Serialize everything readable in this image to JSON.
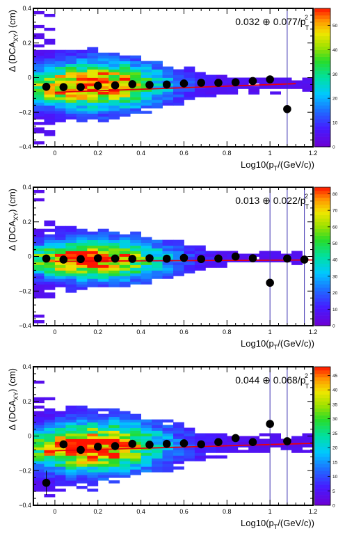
{
  "chart_data": [
    {
      "type": "heatmap",
      "title": "",
      "xlabel": {
        "pre": "Log10(p",
        "sub": "T",
        "post": "/(GeV/c))"
      },
      "ylabel": {
        "pre": "Δ (DCA",
        "sub": "XY",
        "post": ") (cm)"
      },
      "xlim": [
        -0.1,
        1.2
      ],
      "ylim": [
        -0.4,
        0.4
      ],
      "x_ticks": [
        0,
        0.2,
        0.4,
        0.6,
        0.8,
        1,
        1.2
      ],
      "x_tick_labels": [
        "0",
        "0.2",
        "0.4",
        "0.6",
        "0.8",
        "1",
        "1.2"
      ],
      "y_ticks": [
        -0.4,
        -0.2,
        0,
        0.2,
        0.4
      ],
      "y_tick_labels": [
        "−0.4",
        "−0.2",
        "0",
        "0.2",
        "0.4"
      ],
      "z_ticks": [
        0,
        10,
        20,
        30,
        40,
        50
      ],
      "zmax": 57,
      "annotation": {
        "a": "0.032",
        "op": "⊕",
        "b": "0.077/p",
        "sub": "T",
        "sup": "2"
      },
      "points": {
        "x": [
          -0.04,
          0.04,
          0.12,
          0.2,
          0.28,
          0.36,
          0.44,
          0.52,
          0.6,
          0.68,
          0.76,
          0.84,
          0.92,
          1.0,
          1.08
        ],
        "y": [
          -0.053,
          -0.055,
          -0.055,
          -0.047,
          -0.045,
          -0.038,
          -0.042,
          -0.04,
          -0.034,
          -0.03,
          -0.03,
          -0.027,
          -0.02,
          -0.01,
          -0.182
        ],
        "yerr": [
          0.005,
          0.005,
          0.004,
          0.004,
          0.004,
          0.004,
          0.004,
          0.004,
          0.005,
          0.005,
          0.006,
          0.007,
          0.008,
          0.01,
          0.8
        ]
      },
      "fit": {
        "x": [
          0.0,
          1.12
        ],
        "y": [
          -0.085,
          -0.035
        ]
      }
    },
    {
      "type": "heatmap",
      "title": "",
      "xlabel": {
        "pre": "Log10(p",
        "sub": "T",
        "post": "/(GeV/c))"
      },
      "ylabel": {
        "pre": "Δ (DCA",
        "sub": "XY",
        "post": ") (cm)"
      },
      "xlim": [
        -0.1,
        1.2
      ],
      "ylim": [
        -0.4,
        0.4
      ],
      "x_ticks": [
        0,
        0.2,
        0.4,
        0.6,
        0.8,
        1,
        1.2
      ],
      "x_tick_labels": [
        "0",
        "0.2",
        "0.4",
        "0.6",
        "0.8",
        "1",
        "1.2"
      ],
      "y_ticks": [
        -0.4,
        -0.2,
        0,
        0.2,
        0.4
      ],
      "y_tick_labels": [
        "−0.4",
        "−0.2",
        "0",
        "0.2",
        "0.4"
      ],
      "z_ticks": [
        0,
        10,
        20,
        30,
        40,
        50,
        60,
        70,
        80
      ],
      "zmax": 84,
      "annotation": {
        "a": "0.013",
        "op": "⊕",
        "b": "0.022/p",
        "sub": "T",
        "sup": "2"
      },
      "points": {
        "x": [
          -0.04,
          0.04,
          0.12,
          0.2,
          0.28,
          0.36,
          0.44,
          0.52,
          0.6,
          0.68,
          0.76,
          0.84,
          0.92,
          1.0,
          1.08,
          1.16
        ],
        "y": [
          -0.012,
          -0.018,
          -0.015,
          -0.01,
          -0.012,
          -0.014,
          -0.01,
          -0.013,
          -0.008,
          -0.015,
          -0.012,
          0.0,
          -0.01,
          -0.152,
          -0.012,
          -0.018
        ],
        "yerr": [
          0.004,
          0.003,
          0.003,
          0.003,
          0.003,
          0.003,
          0.003,
          0.004,
          0.004,
          0.005,
          0.006,
          0.007,
          0.008,
          0.8,
          0.8,
          0.8
        ]
      },
      "fit": {
        "x": [
          0.0,
          1.2
        ],
        "y": [
          -0.028,
          -0.02
        ]
      }
    },
    {
      "type": "heatmap",
      "title": "",
      "xlabel": {
        "pre": "Log10(p",
        "sub": "T",
        "post": "/(GeV/c))"
      },
      "ylabel": {
        "pre": "Δ (DCA",
        "sub": "XY",
        "post": ") (cm)"
      },
      "xlim": [
        -0.1,
        1.2
      ],
      "ylim": [
        -0.4,
        0.4
      ],
      "x_ticks": [
        0,
        0.2,
        0.4,
        0.6,
        0.8,
        1,
        1.2
      ],
      "x_tick_labels": [
        "0",
        "0.2",
        "0.4",
        "0.6",
        "0.8",
        "1",
        "1.2"
      ],
      "y_ticks": [
        -0.4,
        -0.2,
        0,
        0.2,
        0.4
      ],
      "y_tick_labels": [
        "−0.4",
        "−0.2",
        "0",
        "0.2",
        "0.4"
      ],
      "z_ticks": [
        0,
        5,
        10,
        15,
        20,
        25,
        30,
        35,
        40,
        45
      ],
      "zmax": 48,
      "annotation": {
        "a": "0.044",
        "op": "⊕",
        "b": "0.068/p",
        "sub": "T",
        "sup": "2"
      },
      "points": {
        "x": [
          -0.04,
          0.04,
          0.12,
          0.2,
          0.28,
          0.36,
          0.44,
          0.52,
          0.6,
          0.68,
          0.76,
          0.84,
          0.92,
          1.0,
          1.08
        ],
        "y": [
          -0.27,
          -0.048,
          -0.08,
          -0.062,
          -0.058,
          -0.045,
          -0.05,
          -0.045,
          -0.042,
          -0.048,
          -0.035,
          -0.012,
          -0.035,
          0.07,
          -0.03
        ],
        "yerr": [
          0.07,
          0.006,
          0.005,
          0.005,
          0.005,
          0.005,
          0.005,
          0.006,
          0.006,
          0.007,
          0.008,
          0.01,
          0.012,
          0.8,
          0.8
        ]
      },
      "fit": {
        "x": [
          0.0,
          1.2
        ],
        "y": [
          -0.085,
          -0.042
        ]
      }
    }
  ]
}
